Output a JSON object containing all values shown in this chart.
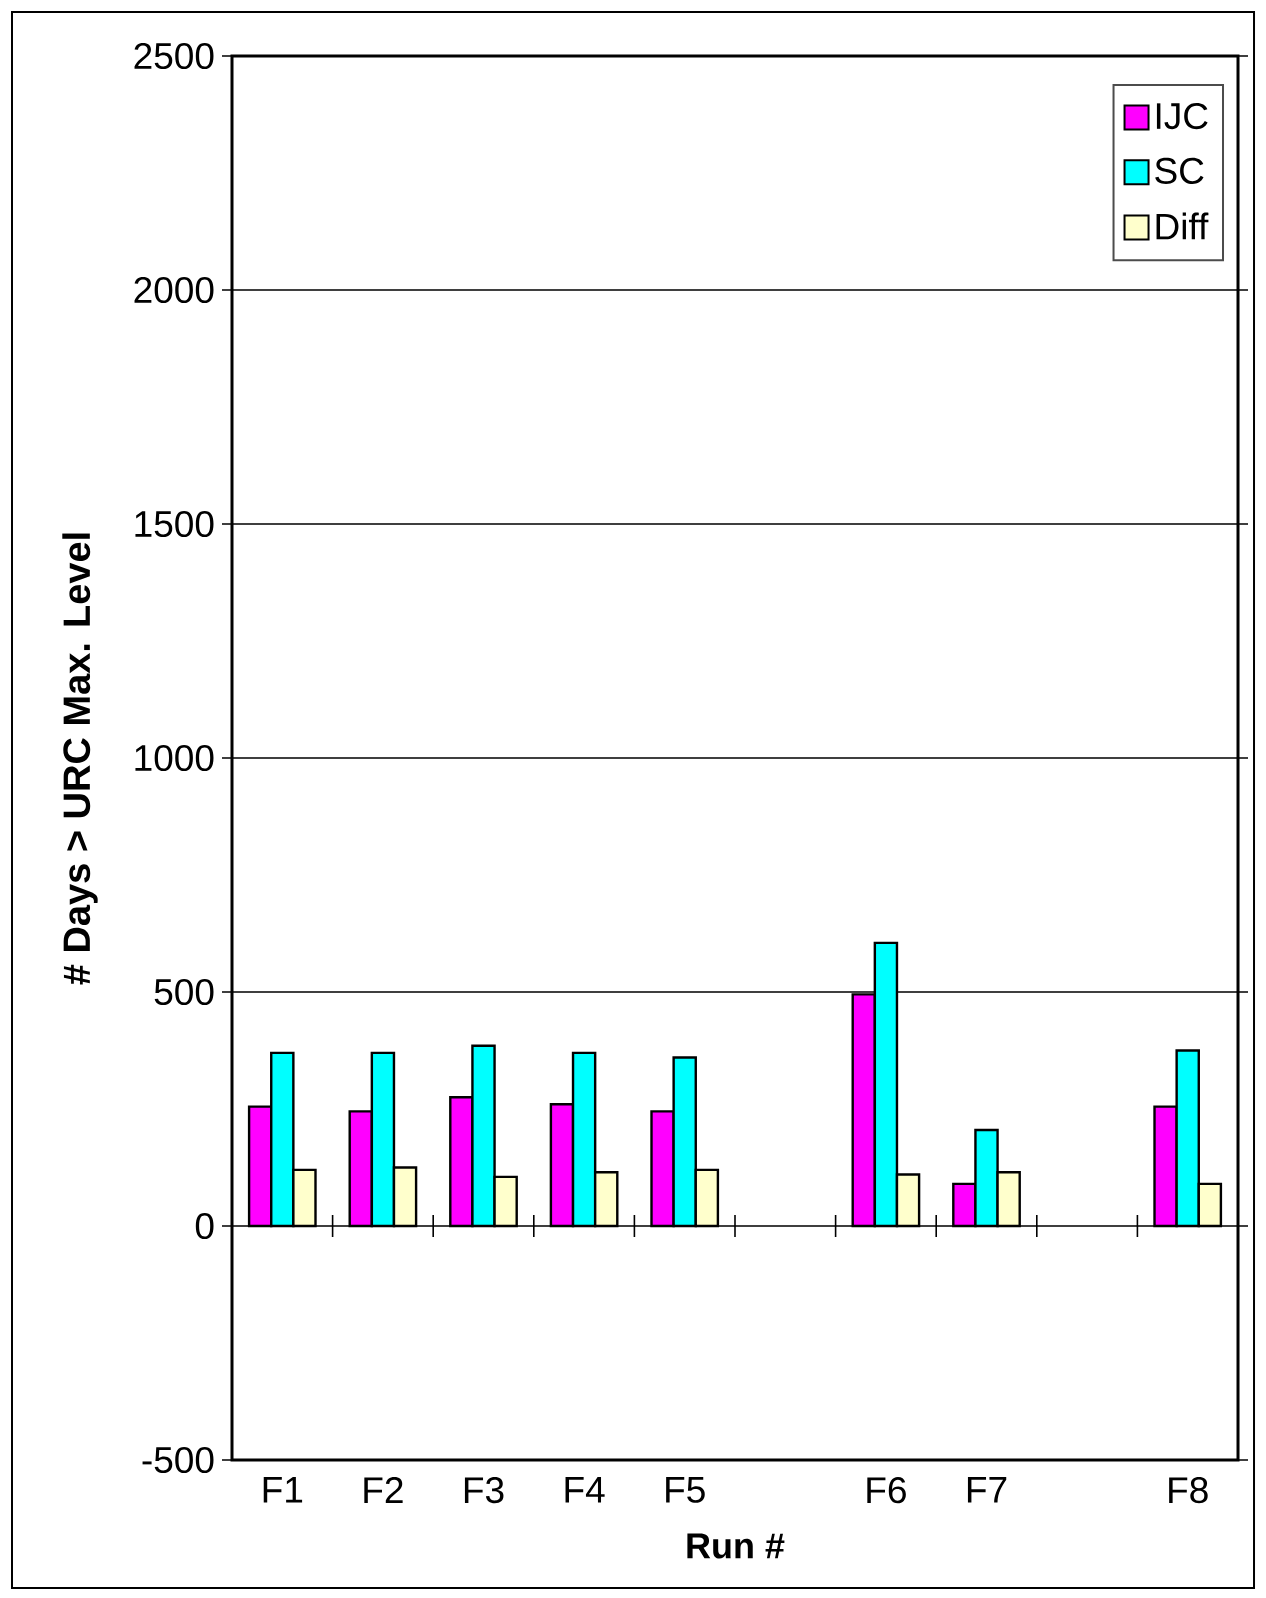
{
  "chart_data": {
    "type": "bar",
    "xlabel": "Run #",
    "ylabel": "# Days > URC Max. Level",
    "categories": [
      "F1",
      "F2",
      "F3",
      "F4",
      "F5",
      null,
      "F6",
      "F7",
      null,
      "F8"
    ],
    "series": [
      {
        "name": "IJC",
        "color": "#ff00ff",
        "values": [
          255,
          245,
          275,
          260,
          245,
          null,
          495,
          90,
          null,
          255
        ]
      },
      {
        "name": "SC",
        "color": "#00ffff",
        "values": [
          370,
          370,
          385,
          370,
          360,
          null,
          605,
          205,
          null,
          375
        ]
      },
      {
        "name": "Diff",
        "color": "#ffffcc",
        "values": [
          120,
          125,
          105,
          115,
          120,
          null,
          110,
          115,
          null,
          90
        ]
      }
    ],
    "ylim": [
      -500,
      2500
    ],
    "yticks": [
      -500,
      0,
      500,
      1000,
      1500,
      2000,
      2500
    ],
    "grid": "y",
    "legend": "top right"
  }
}
